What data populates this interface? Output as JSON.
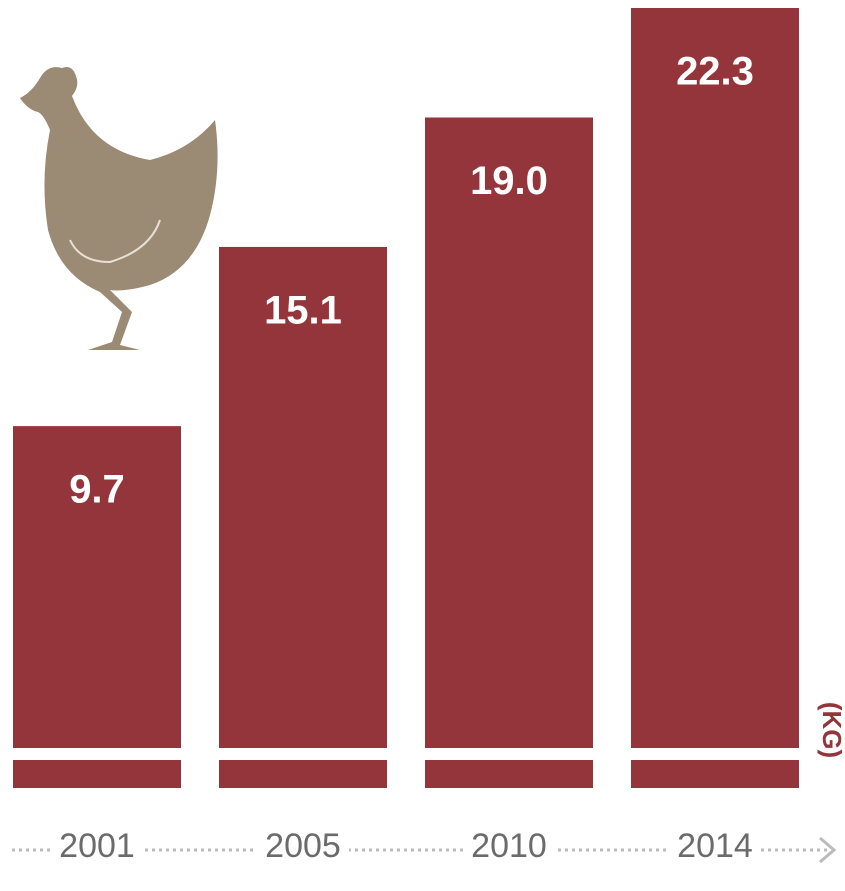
{
  "chart_data": {
    "type": "bar",
    "categories": [
      "2001",
      "2005",
      "2010",
      "2014"
    ],
    "values": [
      9.7,
      15.1,
      19.0,
      22.3
    ],
    "value_labels": [
      "9.7",
      "15.1",
      "19.0",
      "22.3"
    ],
    "unit_label": "(KG)",
    "color": "#93353a"
  }
}
